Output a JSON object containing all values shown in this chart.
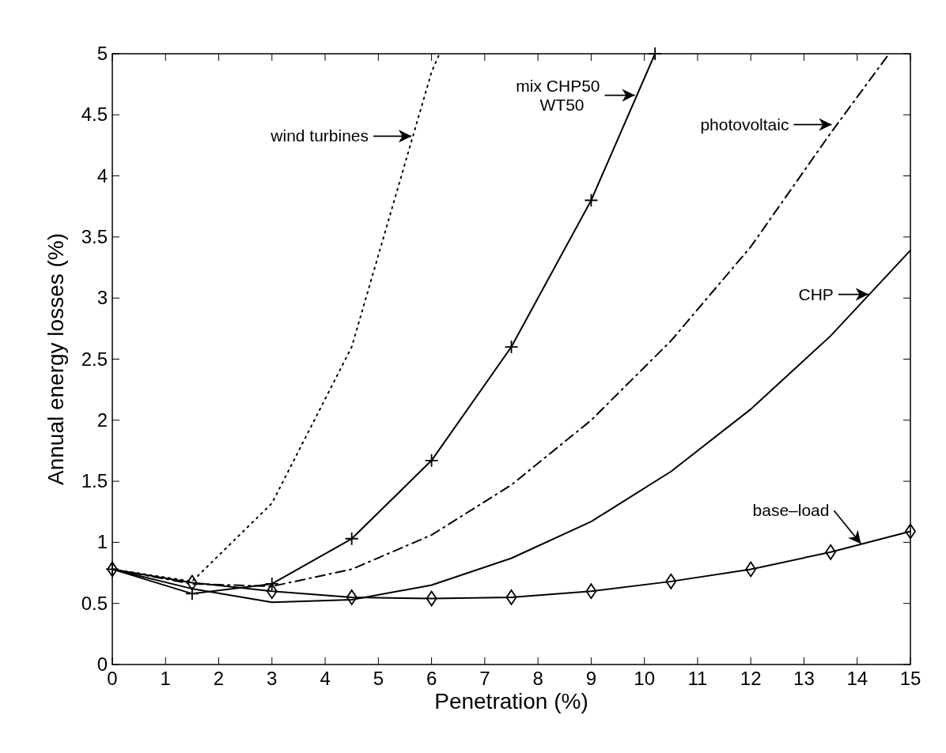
{
  "chart_data": {
    "type": "line",
    "xlabel": "Penetration (%)",
    "ylabel": "Annual energy losses (%)",
    "xlim": [
      0,
      15
    ],
    "xticks": [
      0,
      1,
      2,
      3,
      4,
      5,
      6,
      7,
      8,
      9,
      10,
      11,
      12,
      13,
      14,
      15
    ],
    "ylim": [
      0,
      5
    ],
    "yticks": [
      0,
      0.5,
      1,
      1.5,
      2,
      2.5,
      3,
      3.5,
      4,
      4.5,
      5
    ],
    "grid": false,
    "series": [
      {
        "color": "#000000",
        "line_style": "dotted",
        "marker": "none",
        "x": [
          0,
          1.5,
          3,
          4.5,
          6,
          6.15
        ],
        "values": [
          0.78,
          0.68,
          1.32,
          2.6,
          4.85,
          5
        ]
      },
      {
        "color": "#000000",
        "line_style": "solid",
        "marker": "cross",
        "x": [
          0,
          1.5,
          3,
          4.5,
          6,
          7.5,
          9,
          10.2
        ],
        "values": [
          0.78,
          0.58,
          0.66,
          1.03,
          1.67,
          2.6,
          3.8,
          5
        ]
      },
      {
        "color": "#000000",
        "line_style": "dashed",
        "marker": "none",
        "x": [
          0,
          1.5,
          3,
          4.5,
          6,
          7.5,
          9,
          10.5,
          12,
          13.5,
          14.6
        ],
        "values": [
          0.78,
          0.66,
          0.64,
          0.78,
          1.06,
          1.47,
          2.0,
          2.65,
          3.42,
          4.35,
          5
        ]
      },
      {
        "color": "#000000",
        "line_style": "solid",
        "marker": "none",
        "x": [
          0,
          1.5,
          3,
          4.5,
          6,
          7.5,
          9,
          10.5,
          12,
          13.5,
          15
        ],
        "values": [
          0.78,
          0.62,
          0.51,
          0.53,
          0.65,
          0.87,
          1.17,
          1.58,
          2.09,
          2.69,
          3.39
        ]
      },
      {
        "color": "#000000",
        "line_style": "solid",
        "marker": "diamond",
        "x": [
          0,
          1.5,
          3,
          4.5,
          6,
          7.5,
          9,
          10.5,
          12,
          13.5,
          15
        ],
        "values": [
          0.78,
          0.67,
          0.6,
          0.55,
          0.54,
          0.55,
          0.6,
          0.68,
          0.78,
          0.92,
          1.09
        ]
      }
    ],
    "annotations": [
      {
        "text": "wind turbines",
        "x": 5.65,
        "y": 4.325
      },
      {
        "text": "mix CHP50\nWT50",
        "x": 9.85,
        "y": 4.66
      },
      {
        "text": "photovoltaic",
        "x": 13.55,
        "y": 4.42
      },
      {
        "text": "CHP",
        "x": 14.24,
        "y": 3.03
      },
      {
        "text": "base–load",
        "x": 14.1,
        "y": 0.988
      }
    ]
  }
}
